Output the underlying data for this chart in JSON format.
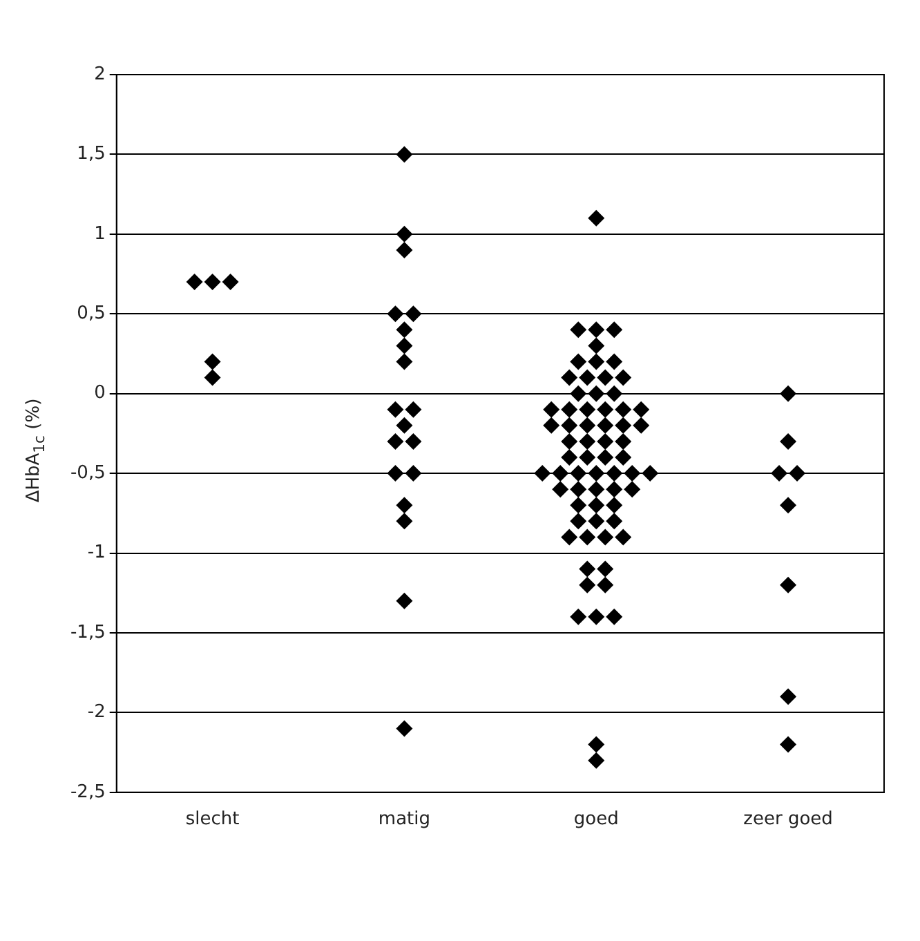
{
  "chart_data": {
    "type": "scatter",
    "ylabel": "ΔHbA$_{1c}$ (%)",
    "categories": [
      "slecht",
      "matig",
      "goed",
      "zeer goed"
    ],
    "series": [
      {
        "color": "#000000",
        "x": [
          "slecht",
          "slecht",
          "slecht",
          "slecht",
          "slecht",
          "matig",
          "matig",
          "matig",
          "matig",
          "matig",
          "matig",
          "matig",
          "matig",
          "matig",
          "matig",
          "matig",
          "matig",
          "matig",
          "matig",
          "matig",
          "matig",
          "matig",
          "matig",
          "matig",
          "goed",
          "goed",
          "goed",
          "goed",
          "goed",
          "goed",
          "goed",
          "goed",
          "goed",
          "goed",
          "goed",
          "goed",
          "goed",
          "goed",
          "goed",
          "goed",
          "goed",
          "goed",
          "goed",
          "goed",
          "goed",
          "goed",
          "goed",
          "goed",
          "goed",
          "goed",
          "goed",
          "goed",
          "goed",
          "goed",
          "goed",
          "goed",
          "goed",
          "goed",
          "goed",
          "goed",
          "goed",
          "goed",
          "goed",
          "goed",
          "goed",
          "goed",
          "goed",
          "goed",
          "goed",
          "goed",
          "goed",
          "goed",
          "goed",
          "goed",
          "goed",
          "goed",
          "goed",
          "goed",
          "goed",
          "goed",
          "goed",
          "goed",
          "goed",
          "goed",
          "goed",
          "goed",
          "goed",
          "goed",
          "goed",
          "goed",
          "zeer goed",
          "zeer goed",
          "zeer goed",
          "zeer goed",
          "zeer goed",
          "zeer goed",
          "zeer goed",
          "zeer goed"
        ],
        "values": [
          0.7,
          0.7,
          0.7,
          0.2,
          0.1,
          1.5,
          1.0,
          0.9,
          0.5,
          0.5,
          0.4,
          0.3,
          0.2,
          -0.1,
          -0.1,
          -0.2,
          -0.3,
          -0.3,
          -0.5,
          -0.5,
          -0.7,
          -0.8,
          -1.3,
          -2.1,
          1.1,
          0.4,
          0.4,
          0.4,
          0.3,
          0.2,
          0.2,
          0.2,
          0.1,
          0.1,
          0.1,
          0.1,
          0,
          0,
          0,
          -0.1,
          -0.1,
          -0.1,
          -0.1,
          -0.1,
          -0.1,
          -0.2,
          -0.2,
          -0.2,
          -0.2,
          -0.2,
          -0.2,
          -0.3,
          -0.3,
          -0.3,
          -0.3,
          -0.4,
          -0.4,
          -0.4,
          -0.4,
          -0.5,
          -0.5,
          -0.5,
          -0.5,
          -0.5,
          -0.5,
          -0.5,
          -0.6,
          -0.6,
          -0.6,
          -0.6,
          -0.6,
          -0.7,
          -0.7,
          -0.7,
          -0.8,
          -0.8,
          -0.8,
          -0.9,
          -0.9,
          -0.9,
          -0.9,
          -1.1,
          -1.1,
          -1.2,
          -1.2,
          -1.4,
          -1.4,
          -1.4,
          -2.2,
          -2.3,
          0,
          -0.3,
          -0.5,
          -0.5,
          -0.7,
          -1.2,
          -1.9,
          -2.2
        ]
      }
    ],
    "ylim": [
      -2.5,
      2
    ],
    "yticks": [
      {
        "value": -2.5,
        "label": "-2,5"
      },
      -2,
      {
        "value": -1.5,
        "label": "-1,5"
      },
      -1,
      {
        "value": -0.5,
        "label": "-0,5"
      },
      0,
      {
        "value": 0.5,
        "label": "0,5"
      },
      1,
      {
        "value": 1.5,
        "label": "1,5"
      },
      2
    ],
    "grid": "y",
    "marker": "diamond",
    "legend": false
  }
}
